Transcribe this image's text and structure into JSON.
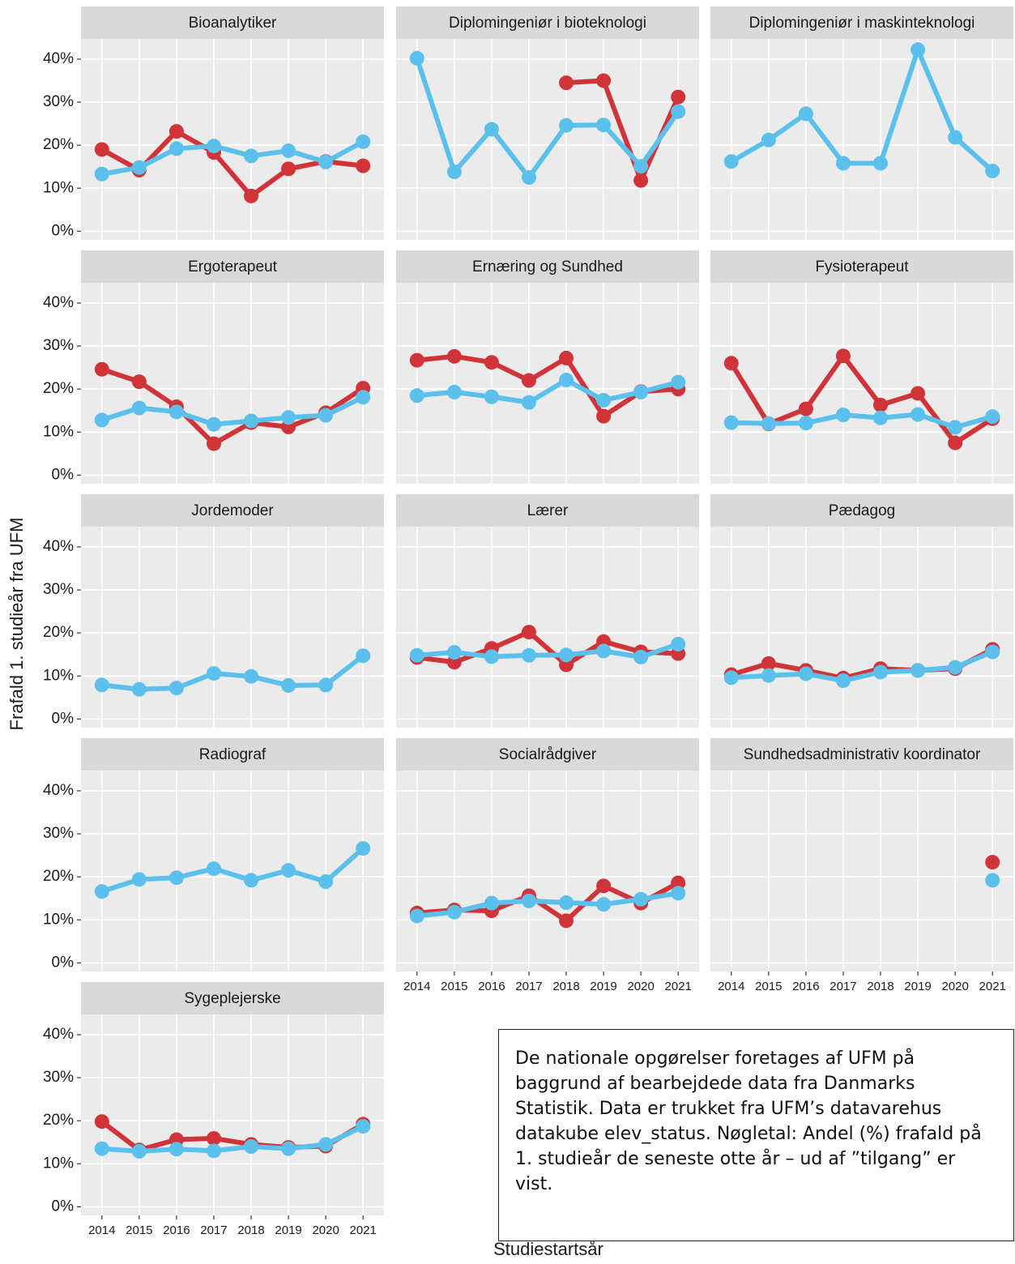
{
  "ylabel": "Frafald 1. studieår fra UFM",
  "xlabel": "Studiestartsår",
  "note": "De nationale opgørelser foretages af UFM på baggrund af bearbejdede data fra Danmarks Statistik. Data er trukket fra UFM’s datavarehus datakube elev_status. Nøgletal: Andel (%) frafald på 1. studieår de seneste otte år – ud af ”tilgang” er vist.",
  "chart_data": [
    {
      "type": "line",
      "title": "Bioanalytiker",
      "x": [
        2014,
        2015,
        2016,
        2017,
        2018,
        2019,
        2020,
        2021
      ],
      "xlim": [
        2013.44,
        2021.56
      ],
      "xticks": [
        2014,
        2015,
        2016,
        2017,
        2018,
        2019,
        2020,
        2021
      ],
      "ylim": [
        -2,
        44.7
      ],
      "yticks": [
        {
          "value": 0,
          "label": "0%"
        },
        {
          "value": 10,
          "label": "10%"
        },
        {
          "value": 20,
          "label": "20%"
        },
        {
          "value": 30,
          "label": "30%"
        },
        {
          "value": 40,
          "label": "40%"
        }
      ],
      "grid": true,
      "ytick_labels": true,
      "xtick_labels": false,
      "series": [
        {
          "color": "#d13438",
          "values": [
            19,
            14.2,
            23.2,
            18.3,
            8.2,
            14.5,
            16.2,
            15.2
          ]
        },
        {
          "color": "#5bc0eb",
          "values": [
            13.3,
            14.8,
            19.2,
            19.8,
            17.5,
            18.7,
            16.1,
            20.8
          ]
        }
      ]
    },
    {
      "type": "line",
      "title": "Diplomingeniør i bioteknologi",
      "x": [
        2014,
        2015,
        2016,
        2017,
        2018,
        2019,
        2020,
        2021
      ],
      "xlim": [
        2013.44,
        2021.56
      ],
      "xticks": [
        2014,
        2015,
        2016,
        2017,
        2018,
        2019,
        2020,
        2021
      ],
      "ylim": [
        -2,
        44.7
      ],
      "yticks": [
        {
          "value": 0,
          "label": "0%"
        },
        {
          "value": 10,
          "label": "10%"
        },
        {
          "value": 20,
          "label": "20%"
        },
        {
          "value": 30,
          "label": "30%"
        },
        {
          "value": 40,
          "label": "40%"
        }
      ],
      "grid": true,
      "ytick_labels": false,
      "xtick_labels": false,
      "series": [
        {
          "color": "#d13438",
          "values": [
            null,
            null,
            null,
            null,
            34.5,
            35,
            11.8,
            31.2
          ]
        },
        {
          "color": "#5bc0eb",
          "values": [
            40.2,
            13.8,
            23.7,
            12.5,
            24.6,
            24.7,
            15.1,
            27.8
          ]
        }
      ]
    },
    {
      "type": "line",
      "title": "Diplomingeniør i maskinteknologi",
      "x": [
        2014,
        2015,
        2016,
        2017,
        2018,
        2019,
        2020,
        2021
      ],
      "xlim": [
        2013.44,
        2021.56
      ],
      "xticks": [
        2014,
        2015,
        2016,
        2017,
        2018,
        2019,
        2020,
        2021
      ],
      "ylim": [
        -2,
        44.7
      ],
      "yticks": [
        {
          "value": 0,
          "label": "0%"
        },
        {
          "value": 10,
          "label": "10%"
        },
        {
          "value": 20,
          "label": "20%"
        },
        {
          "value": 30,
          "label": "30%"
        },
        {
          "value": 40,
          "label": "40%"
        }
      ],
      "grid": true,
      "ytick_labels": false,
      "xtick_labels": false,
      "series": [
        {
          "color": "#5bc0eb",
          "values": [
            16.2,
            21.2,
            27.3,
            15.8,
            15.8,
            42.2,
            21.8,
            14
          ]
        }
      ]
    },
    {
      "type": "line",
      "title": "Ergoterapeut",
      "x": [
        2014,
        2015,
        2016,
        2017,
        2018,
        2019,
        2020,
        2021
      ],
      "xlim": [
        2013.44,
        2021.56
      ],
      "xticks": [
        2014,
        2015,
        2016,
        2017,
        2018,
        2019,
        2020,
        2021
      ],
      "ylim": [
        -2,
        44.7
      ],
      "yticks": [
        {
          "value": 0,
          "label": "0%"
        },
        {
          "value": 10,
          "label": "10%"
        },
        {
          "value": 20,
          "label": "20%"
        },
        {
          "value": 30,
          "label": "30%"
        },
        {
          "value": 40,
          "label": "40%"
        }
      ],
      "grid": true,
      "ytick_labels": true,
      "xtick_labels": false,
      "series": [
        {
          "color": "#d13438",
          "values": [
            24.6,
            21.7,
            15.9,
            7.3,
            12.2,
            11.2,
            14.5,
            20.2
          ]
        },
        {
          "color": "#5bc0eb",
          "values": [
            12.8,
            15.6,
            14.7,
            11.8,
            12.6,
            13.4,
            13.9,
            18.1
          ]
        }
      ]
    },
    {
      "type": "line",
      "title": "Ernæring og Sundhed",
      "x": [
        2014,
        2015,
        2016,
        2017,
        2018,
        2019,
        2020,
        2021
      ],
      "xlim": [
        2013.44,
        2021.56
      ],
      "xticks": [
        2014,
        2015,
        2016,
        2017,
        2018,
        2019,
        2020,
        2021
      ],
      "ylim": [
        -2,
        44.7
      ],
      "yticks": [
        {
          "value": 0,
          "label": "0%"
        },
        {
          "value": 10,
          "label": "10%"
        },
        {
          "value": 20,
          "label": "20%"
        },
        {
          "value": 30,
          "label": "30%"
        },
        {
          "value": 40,
          "label": "40%"
        }
      ],
      "grid": true,
      "ytick_labels": false,
      "xtick_labels": false,
      "series": [
        {
          "color": "#d13438",
          "values": [
            26.7,
            27.6,
            26.2,
            22,
            27.2,
            13.7,
            19.4,
            20
          ]
        },
        {
          "color": "#5bc0eb",
          "values": [
            18.5,
            19.3,
            18.2,
            16.9,
            22.1,
            17.4,
            19.3,
            21.6
          ]
        }
      ]
    },
    {
      "type": "line",
      "title": "Fysioterapeut",
      "x": [
        2014,
        2015,
        2016,
        2017,
        2018,
        2019,
        2020,
        2021
      ],
      "xlim": [
        2013.44,
        2021.56
      ],
      "xticks": [
        2014,
        2015,
        2016,
        2017,
        2018,
        2019,
        2020,
        2021
      ],
      "ylim": [
        -2,
        44.7
      ],
      "yticks": [
        {
          "value": 0,
          "label": "0%"
        },
        {
          "value": 10,
          "label": "10%"
        },
        {
          "value": 20,
          "label": "20%"
        },
        {
          "value": 30,
          "label": "30%"
        },
        {
          "value": 40,
          "label": "40%"
        }
      ],
      "grid": true,
      "ytick_labels": false,
      "xtick_labels": false,
      "series": [
        {
          "color": "#d13438",
          "values": [
            26,
            11.9,
            15.4,
            27.7,
            16.3,
            19,
            7.5,
            13.1
          ]
        },
        {
          "color": "#5bc0eb",
          "values": [
            12.2,
            12,
            12.1,
            14,
            13.3,
            14.1,
            11.1,
            13.6
          ]
        }
      ]
    },
    {
      "type": "line",
      "title": "Jordemoder",
      "x": [
        2014,
        2015,
        2016,
        2017,
        2018,
        2019,
        2020,
        2021
      ],
      "xlim": [
        2013.44,
        2021.56
      ],
      "xticks": [
        2014,
        2015,
        2016,
        2017,
        2018,
        2019,
        2020,
        2021
      ],
      "ylim": [
        -2,
        44.7
      ],
      "yticks": [
        {
          "value": 0,
          "label": "0%"
        },
        {
          "value": 10,
          "label": "10%"
        },
        {
          "value": 20,
          "label": "20%"
        },
        {
          "value": 30,
          "label": "30%"
        },
        {
          "value": 40,
          "label": "40%"
        }
      ],
      "grid": true,
      "ytick_labels": true,
      "xtick_labels": false,
      "series": [
        {
          "color": "#5bc0eb",
          "values": [
            7.9,
            6.9,
            7.2,
            10.6,
            9.9,
            7.8,
            7.9,
            14.7
          ]
        }
      ]
    },
    {
      "type": "line",
      "title": "Lærer",
      "x": [
        2014,
        2015,
        2016,
        2017,
        2018,
        2019,
        2020,
        2021
      ],
      "xlim": [
        2013.44,
        2021.56
      ],
      "xticks": [
        2014,
        2015,
        2016,
        2017,
        2018,
        2019,
        2020,
        2021
      ],
      "ylim": [
        -2,
        44.7
      ],
      "yticks": [
        {
          "value": 0,
          "label": "0%"
        },
        {
          "value": 10,
          "label": "10%"
        },
        {
          "value": 20,
          "label": "20%"
        },
        {
          "value": 30,
          "label": "30%"
        },
        {
          "value": 40,
          "label": "40%"
        }
      ],
      "grid": true,
      "ytick_labels": false,
      "xtick_labels": false,
      "series": [
        {
          "color": "#d13438",
          "values": [
            14.3,
            13.2,
            16.4,
            20.2,
            12.6,
            18,
            15.6,
            15.2
          ]
        },
        {
          "color": "#5bc0eb",
          "values": [
            14.8,
            15.5,
            14.5,
            14.8,
            14.9,
            15.8,
            14.4,
            17.4
          ]
        }
      ]
    },
    {
      "type": "line",
      "title": "Pædagog",
      "x": [
        2014,
        2015,
        2016,
        2017,
        2018,
        2019,
        2020,
        2021
      ],
      "xlim": [
        2013.44,
        2021.56
      ],
      "xticks": [
        2014,
        2015,
        2016,
        2017,
        2018,
        2019,
        2020,
        2021
      ],
      "ylim": [
        -2,
        44.7
      ],
      "yticks": [
        {
          "value": 0,
          "label": "0%"
        },
        {
          "value": 10,
          "label": "10%"
        },
        {
          "value": 20,
          "label": "20%"
        },
        {
          "value": 30,
          "label": "30%"
        },
        {
          "value": 40,
          "label": "40%"
        }
      ],
      "grid": true,
      "ytick_labels": false,
      "xtick_labels": false,
      "series": [
        {
          "color": "#d13438",
          "values": [
            10.3,
            12.9,
            11.3,
            9.5,
            11.7,
            11.3,
            11.7,
            16.2
          ]
        },
        {
          "color": "#5bc0eb",
          "values": [
            9.6,
            10.1,
            10.5,
            8.9,
            10.9,
            11.3,
            12,
            15.6
          ]
        }
      ]
    },
    {
      "type": "line",
      "title": "Radiograf",
      "x": [
        2014,
        2015,
        2016,
        2017,
        2018,
        2019,
        2020,
        2021
      ],
      "xlim": [
        2013.44,
        2021.56
      ],
      "xticks": [
        2014,
        2015,
        2016,
        2017,
        2018,
        2019,
        2020,
        2021
      ],
      "ylim": [
        -2,
        44.7
      ],
      "yticks": [
        {
          "value": 0,
          "label": "0%"
        },
        {
          "value": 10,
          "label": "10%"
        },
        {
          "value": 20,
          "label": "20%"
        },
        {
          "value": 30,
          "label": "30%"
        },
        {
          "value": 40,
          "label": "40%"
        }
      ],
      "grid": true,
      "ytick_labels": true,
      "xtick_labels": false,
      "series": [
        {
          "color": "#5bc0eb",
          "values": [
            16.6,
            19.4,
            19.8,
            21.9,
            19.2,
            21.5,
            18.9,
            26.6
          ]
        }
      ]
    },
    {
      "type": "line",
      "title": "Socialrådgiver",
      "x": [
        2014,
        2015,
        2016,
        2017,
        2018,
        2019,
        2020,
        2021
      ],
      "xlim": [
        2013.44,
        2021.56
      ],
      "xticks": [
        2014,
        2015,
        2016,
        2017,
        2018,
        2019,
        2020,
        2021
      ],
      "ylim": [
        -2,
        44.7
      ],
      "yticks": [
        {
          "value": 0,
          "label": "0%"
        },
        {
          "value": 10,
          "label": "10%"
        },
        {
          "value": 20,
          "label": "20%"
        },
        {
          "value": 30,
          "label": "30%"
        },
        {
          "value": 40,
          "label": "40%"
        }
      ],
      "grid": true,
      "ytick_labels": false,
      "xtick_labels": true,
      "series": [
        {
          "color": "#d13438",
          "values": [
            11.6,
            12.3,
            12.1,
            15.6,
            9.8,
            17.9,
            13.9,
            18.6
          ]
        },
        {
          "color": "#5bc0eb",
          "values": [
            10.9,
            11.8,
            13.9,
            14.4,
            14,
            13.6,
            14.8,
            16.2
          ]
        }
      ]
    },
    {
      "type": "line",
      "title": "Sundhedsadministrativ koordinator",
      "x": [
        2014,
        2015,
        2016,
        2017,
        2018,
        2019,
        2020,
        2021
      ],
      "xlim": [
        2013.44,
        2021.56
      ],
      "xticks": [
        2014,
        2015,
        2016,
        2017,
        2018,
        2019,
        2020,
        2021
      ],
      "ylim": [
        -2,
        44.7
      ],
      "yticks": [
        {
          "value": 0,
          "label": "0%"
        },
        {
          "value": 10,
          "label": "10%"
        },
        {
          "value": 20,
          "label": "20%"
        },
        {
          "value": 30,
          "label": "30%"
        },
        {
          "value": 40,
          "label": "40%"
        }
      ],
      "grid": true,
      "ytick_labels": false,
      "xtick_labels": true,
      "series": [
        {
          "color": "#d13438",
          "values": [
            null,
            null,
            null,
            null,
            null,
            null,
            null,
            23.4
          ]
        },
        {
          "color": "#5bc0eb",
          "values": [
            null,
            null,
            null,
            null,
            null,
            null,
            null,
            19.2
          ]
        }
      ]
    },
    {
      "type": "line",
      "title": "Sygeplejerske",
      "x": [
        2014,
        2015,
        2016,
        2017,
        2018,
        2019,
        2020,
        2021
      ],
      "xlim": [
        2013.44,
        2021.56
      ],
      "xticks": [
        2014,
        2015,
        2016,
        2017,
        2018,
        2019,
        2020,
        2021
      ],
      "ylim": [
        -2,
        44.7
      ],
      "yticks": [
        {
          "value": 0,
          "label": "0%"
        },
        {
          "value": 10,
          "label": "10%"
        },
        {
          "value": 20,
          "label": "20%"
        },
        {
          "value": 30,
          "label": "30%"
        },
        {
          "value": 40,
          "label": "40%"
        }
      ],
      "grid": true,
      "ytick_labels": true,
      "xtick_labels": true,
      "series": [
        {
          "color": "#d13438",
          "values": [
            19.8,
            13.2,
            15.6,
            15.9,
            14.5,
            13.8,
            14.1,
            19.2
          ]
        },
        {
          "color": "#5bc0eb",
          "values": [
            13.5,
            12.9,
            13.4,
            13,
            14,
            13.5,
            14.5,
            18.7
          ]
        }
      ]
    }
  ]
}
